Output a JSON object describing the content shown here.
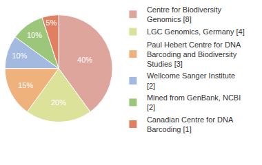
{
  "chart_data": {
    "type": "pie",
    "categories": [
      "Centre for Biodiversity Genomics [8]",
      "LGC Genomics, Germany [4]",
      "Paul Hebert Centre for DNA Barcoding and Biodiversity Studies [3]",
      "Wellcome Sanger Institute [2]",
      "Mined from GenBank, NCBI [2]",
      "Canadian Centre for DNA Barcoding [1]"
    ],
    "values": [
      40,
      20,
      15,
      10,
      10,
      5
    ],
    "value_labels": [
      "40%",
      "20%",
      "15%",
      "10%",
      "10%",
      "5%"
    ],
    "colors": [
      "#dea59c",
      "#dde29b",
      "#f0b27c",
      "#a3b9df",
      "#9cc77a",
      "#e07f62"
    ],
    "data_labels": true,
    "legend": "right"
  }
}
